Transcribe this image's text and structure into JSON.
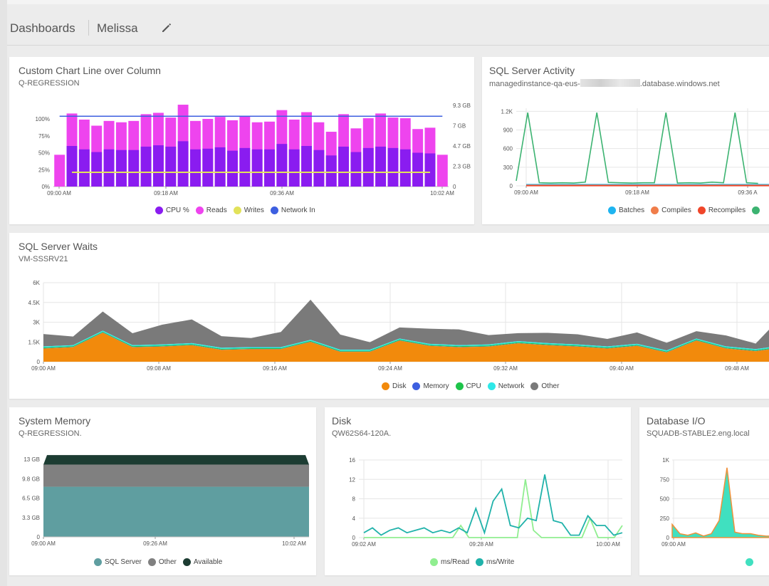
{
  "header": {
    "root": "Dashboards",
    "name": "Melissa"
  },
  "cards": {
    "custom": {
      "title": "Custom Chart Line over Column",
      "subtitle": "Q-REGRESSION",
      "legend": [
        {
          "label": "CPU %",
          "color": "#8a1cf0"
        },
        {
          "label": "Reads",
          "color": "#ee44ee"
        },
        {
          "label": "Writes",
          "color": "#e2e25a"
        },
        {
          "label": "Network In",
          "color": "#3d5fe0"
        }
      ]
    },
    "activity": {
      "title": "SQL Server Activity",
      "subtitle_prefix": "managedinstance-qa-eus-",
      "subtitle_suffix": ".database.windows.net",
      "legend": [
        {
          "label": "Batches",
          "color": "#1eb4f0"
        },
        {
          "label": "Compiles",
          "color": "#f07d4a"
        },
        {
          "label": "Recompiles",
          "color": "#f0462a"
        },
        {
          "label": "",
          "color": "#3cb371"
        }
      ]
    },
    "waits": {
      "title": "SQL Server Waits",
      "subtitle": "VM-SSSRV21",
      "legend": [
        {
          "label": "Disk",
          "color": "#f28a0c"
        },
        {
          "label": "Memory",
          "color": "#3d5fe0"
        },
        {
          "label": "CPU",
          "color": "#1ec44a"
        },
        {
          "label": "Network",
          "color": "#2ee8e8"
        },
        {
          "label": "Other",
          "color": "#7a7a7a"
        }
      ]
    },
    "memory": {
      "title": "System Memory",
      "subtitle": "Q-REGRESSION.",
      "legend": [
        {
          "label": "SQL Server",
          "color": "#5f9ea0"
        },
        {
          "label": "Other",
          "color": "#808080"
        },
        {
          "label": "Available",
          "color": "#1c3c32"
        }
      ]
    },
    "disk": {
      "title": "Disk",
      "subtitle": "QW62S64-120A.",
      "legend": [
        {
          "label": "ms/Read",
          "color": "#90ee90"
        },
        {
          "label": "ms/Write",
          "color": "#20b2aa"
        }
      ]
    },
    "dbio": {
      "title": "Database I/O",
      "subtitle": "SQUADB-STABLE2.eng.local",
      "legend": [
        {
          "label": "",
          "color": "#40e0c0"
        }
      ]
    }
  },
  "chart_data": [
    {
      "id": "custom",
      "type": "bar",
      "title": "Custom Chart Line over Column",
      "x_ticks": [
        "09:00 AM",
        "09:18 AM",
        "09:36 AM",
        "10:02 AM"
      ],
      "y_ticks_left": [
        "0%",
        "25%",
        "50%",
        "75%",
        "100%"
      ],
      "y_ticks_right": [
        "0",
        "2.3 GB",
        "4.7 GB",
        "7 GB",
        "9.3 GB"
      ],
      "ylim": [
        0,
        120
      ],
      "series": [
        {
          "name": "CPU %",
          "values": [
            0,
            60,
            55,
            51,
            55,
            54,
            54,
            59,
            61,
            59,
            67,
            55,
            56,
            58,
            53,
            57,
            55,
            55,
            63,
            55,
            60,
            54,
            46,
            59,
            51,
            57,
            59,
            57,
            55,
            50,
            49,
            0
          ]
        },
        {
          "name": "Reads",
          "values": [
            47,
            108,
            99,
            90,
            97,
            95,
            97,
            107,
            109,
            102,
            121,
            97,
            100,
            103,
            98,
            104,
            95,
            96,
            113,
            99,
            110,
            95,
            81,
            107,
            86,
            101,
            108,
            102,
            101,
            85,
            87,
            47
          ]
        },
        {
          "name": "Writes",
          "values": [
            null,
            21,
            21,
            21,
            21,
            21,
            21,
            21,
            21,
            21,
            21,
            21,
            21,
            21,
            21,
            21,
            21,
            21,
            21,
            21,
            21,
            21,
            21,
            21,
            21,
            21,
            21,
            21,
            21,
            21,
            21,
            null
          ]
        },
        {
          "name": "Network In",
          "values": [
            104,
            104,
            104,
            104,
            104,
            104,
            104,
            104,
            104,
            104,
            104,
            104,
            104,
            104,
            104,
            104,
            104,
            104,
            104,
            104,
            104,
            104,
            104,
            104,
            104,
            104,
            104,
            104,
            104,
            104,
            104,
            104
          ]
        }
      ]
    },
    {
      "id": "activity",
      "type": "line",
      "title": "SQL Server Activity",
      "x_ticks": [
        "09:00 AM",
        "09:18 AM",
        "09:36 A"
      ],
      "y_ticks": [
        "0",
        "300",
        "600",
        "900",
        "1.2K"
      ],
      "ylim": [
        0,
        1250
      ],
      "series": [
        {
          "name": "Batches",
          "values": [
            20,
            20,
            20,
            20,
            20,
            20,
            20,
            20,
            20,
            20,
            20,
            20,
            20,
            20,
            20,
            20,
            20,
            20,
            20,
            20,
            20,
            20,
            20,
            20,
            20,
            20,
            20,
            20,
            20,
            20,
            20,
            20,
            20,
            20,
            20,
            20
          ]
        },
        {
          "name": "Compiles",
          "values": [
            8,
            8,
            8,
            8,
            8,
            8,
            8,
            8,
            8,
            8,
            8,
            8,
            8,
            8,
            8,
            8,
            8,
            8,
            8,
            8,
            8,
            8,
            8,
            8,
            8,
            8,
            8,
            8,
            8,
            8,
            8,
            8,
            8,
            8,
            8,
            8
          ]
        },
        {
          "name": "Recompiles",
          "values": [
            3,
            3,
            3,
            3,
            3,
            3,
            3,
            3,
            3,
            3,
            3,
            3,
            3,
            3,
            3,
            3,
            3,
            3,
            3,
            3,
            3,
            3,
            3,
            3,
            3,
            3,
            3,
            3,
            3,
            3,
            3,
            3,
            3,
            3,
            3,
            3
          ]
        },
        {
          "values": [
            80,
            1180,
            50,
            45,
            50,
            45,
            60,
            1180,
            55,
            50,
            45,
            50,
            50,
            1180,
            45,
            50,
            45,
            60,
            50,
            1180,
            50,
            40
          ]
        }
      ]
    },
    {
      "id": "waits",
      "type": "area",
      "title": "SQL Server Waits",
      "x_ticks": [
        "09:00 AM",
        "09:08 AM",
        "09:16 AM",
        "09:24 AM",
        "09:32 AM",
        "09:40 AM",
        "09:48 AM"
      ],
      "y_ticks": [
        "0",
        "1.5K",
        "3K",
        "4.5K",
        "6K"
      ],
      "ylim": [
        0,
        6000
      ],
      "series": [
        {
          "name": "Disk",
          "values": [
            1000,
            1100,
            2200,
            1100,
            1150,
            1250,
            900,
            950,
            950,
            1500,
            750,
            750,
            1600,
            1200,
            1100,
            1150,
            1400,
            1250,
            1150,
            1000,
            1200,
            700,
            1600,
            1000,
            800,
            1100
          ]
        },
        {
          "name": "Memory",
          "values": [
            20,
            20,
            20,
            20,
            20,
            20,
            20,
            20,
            20,
            20,
            20,
            20,
            20,
            20,
            20,
            20,
            20,
            20,
            20,
            20,
            20,
            20,
            20,
            20,
            20,
            20
          ]
        },
        {
          "name": "CPU",
          "values": [
            60,
            60,
            60,
            60,
            60,
            60,
            60,
            60,
            60,
            60,
            60,
            60,
            60,
            60,
            60,
            60,
            60,
            60,
            60,
            60,
            60,
            60,
            60,
            60,
            60,
            60
          ]
        },
        {
          "name": "Network",
          "values": [
            80,
            80,
            80,
            80,
            80,
            80,
            80,
            80,
            80,
            80,
            80,
            80,
            80,
            80,
            80,
            80,
            80,
            80,
            80,
            80,
            80,
            80,
            80,
            80,
            80,
            80
          ]
        },
        {
          "name": "Other",
          "values": [
            940,
            650,
            1450,
            900,
            1500,
            1800,
            880,
            690,
            1150,
            3050,
            1150,
            570,
            840,
            1150,
            1190,
            710,
            610,
            780,
            770,
            570,
            860,
            580,
            560,
            830,
            420,
            2470
          ]
        }
      ]
    },
    {
      "id": "memory",
      "type": "area",
      "title": "System Memory",
      "x_ticks": [
        "09:00 AM",
        "09:26 AM",
        "10:02 AM"
      ],
      "y_ticks": [
        "0",
        "3.3 GB",
        "6.5 GB",
        "9.8 GB",
        "13 GB"
      ],
      "ylim": [
        0,
        13
      ],
      "series": [
        {
          "name": "SQL Server",
          "values": [
            8.4,
            8.4
          ]
        },
        {
          "name": "Other",
          "values": [
            3.7,
            3.7
          ]
        },
        {
          "name": "Available",
          "values": [
            1.6,
            1.6
          ]
        }
      ]
    },
    {
      "id": "disk",
      "type": "line",
      "title": "Disk",
      "x_ticks": [
        "09:02 AM",
        "09:28 AM",
        "10:00 AM"
      ],
      "y_ticks": [
        "0",
        "4",
        "8",
        "12",
        "16"
      ],
      "ylim": [
        0,
        16
      ],
      "series": [
        {
          "name": "ms/Read",
          "values": [
            0,
            0,
            0,
            0,
            0,
            0,
            0,
            0,
            0,
            0,
            0,
            0,
            2.5,
            0,
            0,
            0,
            0,
            0,
            0,
            0,
            12,
            1.5,
            0,
            0,
            0,
            0,
            0,
            0,
            4,
            0,
            0,
            0,
            2.5
          ]
        },
        {
          "name": "ms/Write",
          "values": [
            1,
            2,
            0.5,
            1.5,
            2,
            1,
            1.5,
            2,
            1,
            1.5,
            1,
            2,
            1,
            6,
            1,
            7.5,
            10,
            2.5,
            2,
            4,
            3.5,
            13,
            3.5,
            3,
            0.5,
            0.5,
            4.5,
            2.5,
            2.5,
            0.5,
            1
          ]
        }
      ]
    },
    {
      "id": "dbio",
      "type": "area",
      "title": "Database I/O",
      "x_ticks": [
        "09:00 AM"
      ],
      "y_ticks": [
        "0",
        "250",
        "500",
        "750",
        "1K"
      ],
      "ylim": [
        0,
        1000
      ],
      "series": [
        {
          "values": [
            170,
            50,
            30,
            60,
            20,
            50,
            220,
            900,
            70,
            50,
            50,
            30,
            20,
            20,
            20
          ]
        }
      ]
    }
  ]
}
